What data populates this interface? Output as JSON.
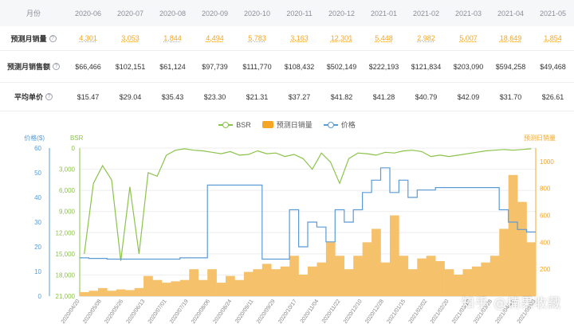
{
  "table": {
    "row_labels": {
      "month": "月份",
      "sales": "预测月销量",
      "revenue": "预测月销售额",
      "price": "平均单价"
    },
    "months": [
      "2020-06",
      "2020-07",
      "2020-08",
      "2020-09",
      "2020-10",
      "2020-11",
      "2020-12",
      "2021-01",
      "2021-02",
      "2021-03",
      "2021-04",
      "2021-05"
    ],
    "sales": [
      "4,301",
      "3,053",
      "1,844",
      "4,494",
      "5,783",
      "3,163",
      "12,301",
      "5,448",
      "2,982",
      "5,007",
      "18,649",
      "1,854"
    ],
    "revenue": [
      "$66,466",
      "$102,151",
      "$61,124",
      "$97,739",
      "$111,770",
      "$108,432",
      "$502,149",
      "$222,193",
      "$121,834",
      "$203,090",
      "$594,258",
      "$49,468"
    ],
    "price": [
      "$15.47",
      "$29.04",
      "$35.43",
      "$23.30",
      "$21.31",
      "$37.27",
      "$41.82",
      "$41.28",
      "$40.79",
      "$42.09",
      "$31.70",
      "$26.61"
    ],
    "help_icon": "question-circle-icon"
  },
  "chart_data": {
    "type": "line",
    "legend": [
      "BSR",
      "预测日销量",
      "价格"
    ],
    "legend_position": "top-center",
    "left_axis_label": "价格($)",
    "left_axis_ticks": [
      60,
      50,
      40,
      30,
      20,
      10,
      0
    ],
    "bsr_axis_label": "BSR",
    "bsr_axis_ticks": [
      "0",
      "3,000",
      "6,000",
      "9,000",
      "12,000",
      "15,000",
      "18,000",
      "21,000"
    ],
    "bsr_axis_inverted": true,
    "right_axis_label": "预测日销量",
    "right_axis_ticks": [
      1000,
      800,
      600,
      400,
      200
    ],
    "x_date_labels": [
      "2020/04/20",
      "2020/05/08",
      "2020/05/26",
      "2020/06/13",
      "2020/07/01",
      "2020/07/19",
      "2020/08/06",
      "2020/08/24",
      "2020/09/11",
      "2020/09/29",
      "2020/10/17",
      "2020/11/04",
      "2020/11/22",
      "2020/12/10",
      "2020/12/28",
      "2021/01/15",
      "2021/02/02",
      "2021/02/20",
      "2021/03/10",
      "2021/03/28",
      "2021/04/15",
      "2021/05/03"
    ],
    "series": [
      {
        "name": "BSR",
        "color": "#8bc34a",
        "values": [
          15000,
          5000,
          2500,
          4500,
          16000,
          5500,
          15000,
          3500,
          4000,
          1000,
          300,
          100,
          300,
          400,
          600,
          800,
          500,
          1000,
          900,
          400,
          800,
          700,
          1200,
          900,
          1500,
          3000,
          700,
          2000,
          5000,
          1500,
          700,
          800,
          1000,
          600,
          700,
          400,
          300,
          500,
          1200,
          1000,
          1200,
          1000,
          800,
          600,
          400,
          300,
          200,
          300,
          200,
          100
        ]
      },
      {
        "name": "预测日销量",
        "color": "#f5a623",
        "values": [
          30,
          40,
          60,
          40,
          50,
          45,
          60,
          150,
          120,
          100,
          110,
          120,
          200,
          120,
          200,
          100,
          150,
          120,
          180,
          200,
          240,
          200,
          220,
          300,
          160,
          220,
          250,
          400,
          300,
          200,
          300,
          400,
          500,
          250,
          600,
          300,
          200,
          280,
          300,
          260,
          200,
          160,
          200,
          220,
          250,
          300,
          500,
          900,
          700,
          400
        ]
      },
      {
        "name": "价格",
        "color": "#5b9bd5",
        "values": [
          15.5,
          15.3,
          15.3,
          15.0,
          15.0,
          15.0,
          15.0,
          15.0,
          15.0,
          15.0,
          15.0,
          15.5,
          15.5,
          15.5,
          45,
          45,
          45,
          45,
          45,
          45,
          15.0,
          15.0,
          15.0,
          35,
          20,
          30,
          28,
          22,
          35,
          30,
          35,
          42,
          47,
          52,
          42,
          47,
          40,
          43,
          43,
          44,
          44,
          44,
          44,
          44,
          44,
          44,
          35,
          30,
          27,
          26
        ]
      }
    ]
  },
  "watermark": "知乎 @楠果收藏"
}
